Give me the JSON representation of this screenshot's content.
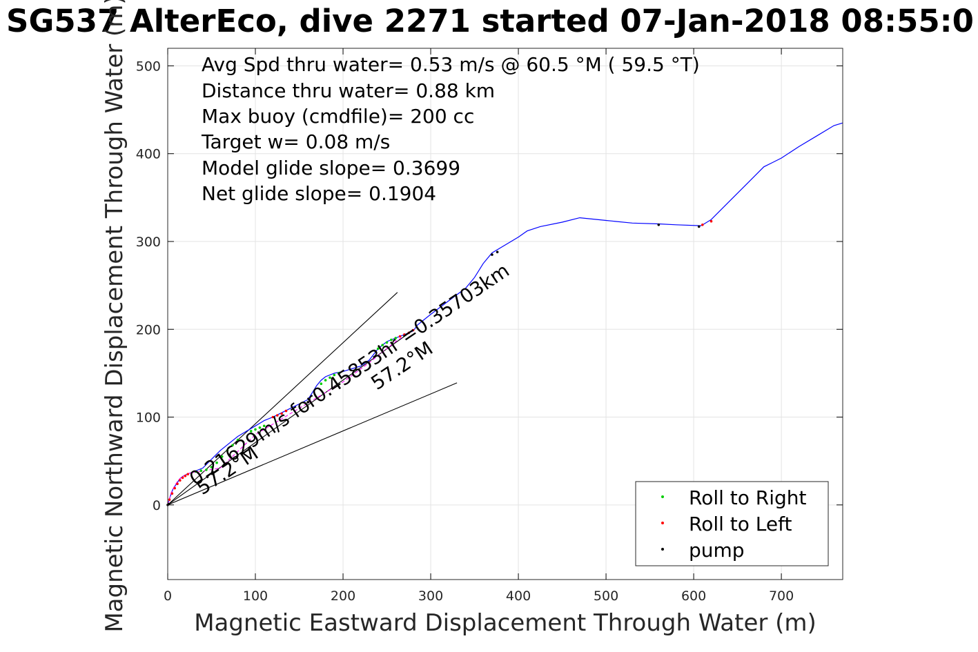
{
  "chart_data": {
    "type": "line",
    "title": "SG537 AlterEco, dive 2271 started 07-Jan-2018 08:55:0",
    "xlabel": "Magnetic Eastward Displacement Through Water (m)",
    "ylabel": "Magnetic Northward Displacement Through Water (m)",
    "xlim": [
      0,
      770
    ],
    "ylim": [
      -85,
      520
    ],
    "xticks": [
      0,
      100,
      200,
      300,
      400,
      500,
      600,
      700
    ],
    "yticks": [
      0,
      100,
      200,
      300,
      400,
      500
    ],
    "grid": true,
    "legend_position": "bottom-right",
    "colors": {
      "track": "#0000ff",
      "roll_right": "#00cc00",
      "roll_left": "#ff0000",
      "pump": "#000000",
      "dashed": "#ff00ff",
      "grid": "#e3e3e3",
      "axes": "#000000",
      "tick_label": "#262626"
    },
    "annotations": [
      "Avg Spd thru water=  0.53 m/s @  60.5 °M ( 59.5 °T)",
      "Distance thru water=  0.88 km",
      "Max buoy (cmdfile)= 200 cc",
      "Target w= 0.08 m/s",
      "Model glide slope= 0.3699",
      "Net glide slope= 0.1904"
    ],
    "current_label": "0.21629m/s for0.45853hr =0.35703km",
    "heading_labels": [
      "57.2°M",
      "57.2°M"
    ],
    "legend": [
      {
        "name": "Roll to Right",
        "color": "#00cc00"
      },
      {
        "name": "Roll to Left",
        "color": "#ff0000"
      },
      {
        "name": "pump",
        "color": "#000000"
      }
    ],
    "series": [
      {
        "name": "track",
        "style": "line",
        "color": "#0000ff",
        "x": [
          0,
          3,
          6,
          10,
          14,
          18,
          22,
          30,
          40,
          50,
          60,
          70,
          80,
          90,
          100,
          110,
          120,
          130,
          140,
          150,
          160,
          165,
          170,
          175,
          180,
          190,
          200,
          210,
          220,
          230,
          240,
          250,
          260,
          270,
          280,
          285,
          300,
          320,
          340,
          350,
          360,
          370,
          380,
          400,
          410,
          425,
          450,
          470,
          500,
          530,
          560,
          580,
          608,
          612,
          620,
          640,
          660,
          680,
          690,
          700,
          720,
          740,
          760,
          770
        ],
        "y": [
          0,
          10,
          18,
          24,
          30,
          33,
          35,
          38,
          42,
          52,
          62,
          70,
          78,
          84,
          90,
          96,
          100,
          105,
          110,
          115,
          120,
          128,
          136,
          142,
          146,
          150,
          152,
          155,
          158,
          165,
          178,
          186,
          190,
          194,
          198,
          205,
          217,
          232,
          247,
          259,
          275,
          287,
          293,
          305,
          312,
          317,
          322,
          327,
          324,
          321,
          320,
          319,
          318,
          320,
          325,
          345,
          365,
          385,
          390,
          395,
          408,
          420,
          432,
          435
        ]
      },
      {
        "name": "roll_right_points",
        "style": "dots",
        "color": "#00cc00",
        "x": [
          32,
          38,
          44,
          50,
          56,
          62,
          68,
          74,
          80,
          95,
          100,
          105,
          110,
          175,
          180,
          185,
          190,
          195,
          240,
          245,
          250,
          255,
          260
        ],
        "y": [
          38,
          39,
          40,
          43,
          48,
          55,
          62,
          68,
          74,
          84,
          86,
          88,
          90,
          138,
          142,
          145,
          148,
          150,
          178,
          182,
          185,
          188,
          190
        ]
      },
      {
        "name": "roll_left_points",
        "style": "dots",
        "color": "#ff0000",
        "x": [
          2,
          5,
          8,
          11,
          14,
          17,
          20,
          23,
          120,
          125,
          130,
          135,
          265,
          270,
          275,
          280,
          610,
          620
        ],
        "y": [
          6,
          13,
          19,
          24,
          28,
          31,
          33,
          35,
          100,
          102,
          104,
          107,
          192,
          194,
          196,
          199,
          319,
          323
        ]
      },
      {
        "name": "pump_points",
        "style": "dots",
        "color": "#000000",
        "x": [
          0,
          1,
          160,
          370,
          376,
          560,
          606
        ],
        "y": [
          0,
          1,
          117,
          285,
          288,
          319,
          317
        ]
      },
      {
        "name": "dashed_track",
        "style": "dashed",
        "color": "#ff00ff",
        "x": [
          0,
          4,
          8,
          12,
          16,
          20,
          24,
          60,
          100,
          150,
          200,
          230,
          260,
          280
        ],
        "y": [
          0,
          14,
          22,
          28,
          32,
          34,
          36,
          42,
          80,
          110,
          140,
          162,
          186,
          199
        ]
      },
      {
        "name": "cone_line_upper",
        "style": "thin",
        "color": "#000000",
        "x": [
          0,
          262
        ],
        "y": [
          0,
          242
        ]
      },
      {
        "name": "cone_line_lower",
        "style": "thin",
        "color": "#000000",
        "x": [
          0,
          330
        ],
        "y": [
          0,
          139
        ]
      },
      {
        "name": "current_vector",
        "style": "thin",
        "color": "#000000",
        "x": [
          0,
          280
        ],
        "y": [
          0,
          199
        ]
      }
    ]
  }
}
